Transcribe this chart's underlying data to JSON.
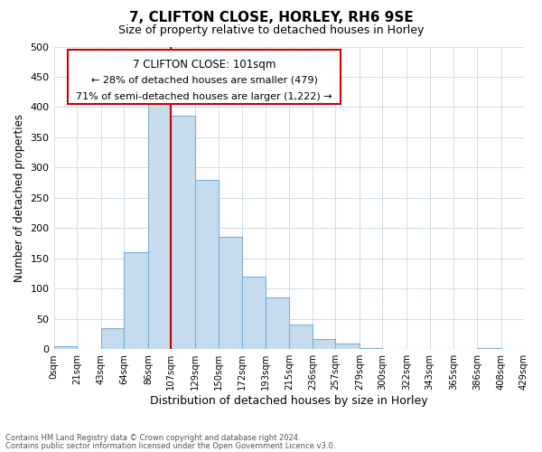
{
  "title": "7, CLIFTON CLOSE, HORLEY, RH6 9SE",
  "subtitle": "Size of property relative to detached houses in Horley",
  "xlabel": "Distribution of detached houses by size in Horley",
  "ylabel": "Number of detached properties",
  "bin_edges": [
    0,
    21,
    43,
    64,
    86,
    107,
    129,
    150,
    172,
    193,
    215,
    236,
    257,
    279,
    300,
    322,
    343,
    365,
    386,
    408,
    429
  ],
  "bar_heights": [
    5,
    0,
    35,
    160,
    410,
    385,
    280,
    185,
    120,
    85,
    40,
    17,
    10,
    2,
    0,
    0,
    0,
    0,
    2,
    0
  ],
  "bar_color": "#c6dcee",
  "bar_edge_color": "#7bafd4",
  "reference_line_x": 107,
  "reference_line_color": "#cc0000",
  "ylim": [
    0,
    500
  ],
  "xlim": [
    0,
    429
  ],
  "xtick_labels": [
    "0sqm",
    "21sqm",
    "43sqm",
    "64sqm",
    "86sqm",
    "107sqm",
    "129sqm",
    "150sqm",
    "172sqm",
    "193sqm",
    "215sqm",
    "236sqm",
    "257sqm",
    "279sqm",
    "300sqm",
    "322sqm",
    "343sqm",
    "365sqm",
    "386sqm",
    "408sqm",
    "429sqm"
  ],
  "ytick_labels": [
    "0",
    "50",
    "100",
    "150",
    "200",
    "250",
    "300",
    "350",
    "400",
    "450",
    "500"
  ],
  "annotation_title": "7 CLIFTON CLOSE: 101sqm",
  "annotation_line1": "← 28% of detached houses are smaller (479)",
  "annotation_line2": "71% of semi-detached houses are larger (1,222) →",
  "annotation_box_color": "#ffffff",
  "annotation_box_edge": "#cc0000",
  "footer_line1": "Contains HM Land Registry data © Crown copyright and database right 2024.",
  "footer_line2": "Contains public sector information licensed under the Open Government Licence v3.0.",
  "bg_color": "#ffffff",
  "grid_color": "#d0dce8"
}
